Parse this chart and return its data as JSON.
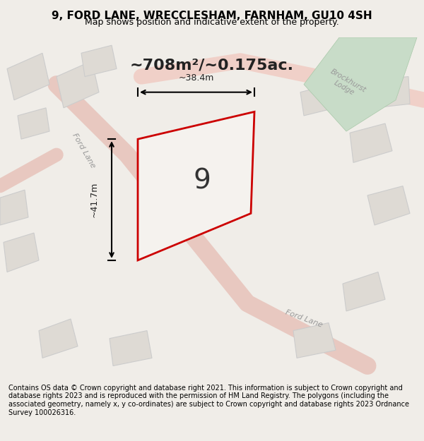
{
  "title_line1": "9, FORD LANE, WRECCLESHAM, FARNHAM, GU10 4SH",
  "title_line2": "Map shows position and indicative extent of the property.",
  "footer_text": "Contains OS data © Crown copyright and database right 2021. This information is subject to Crown copyright and database rights 2023 and is reproduced with the permission of HM Land Registry. The polygons (including the associated geometry, namely x, y co-ordinates) are subject to Crown copyright and database rights 2023 Ordnance Survey 100026316.",
  "area_label": "~708m²/~0.175ac.",
  "plot_number": "9",
  "width_label": "~38.4m",
  "height_label": "~41.7m",
  "bg_color": "#f0ede8",
  "map_bg": "#f5f2ee",
  "road_color": "#e8d8d0",
  "plot_outline_color": "#cc0000",
  "plot_fill_color": "#f5f2ee",
  "road_label_color": "#888888",
  "green_area_color": "#c8dcc8",
  "building_color": "#e8e4de",
  "building_stroke": "#cccccc"
}
